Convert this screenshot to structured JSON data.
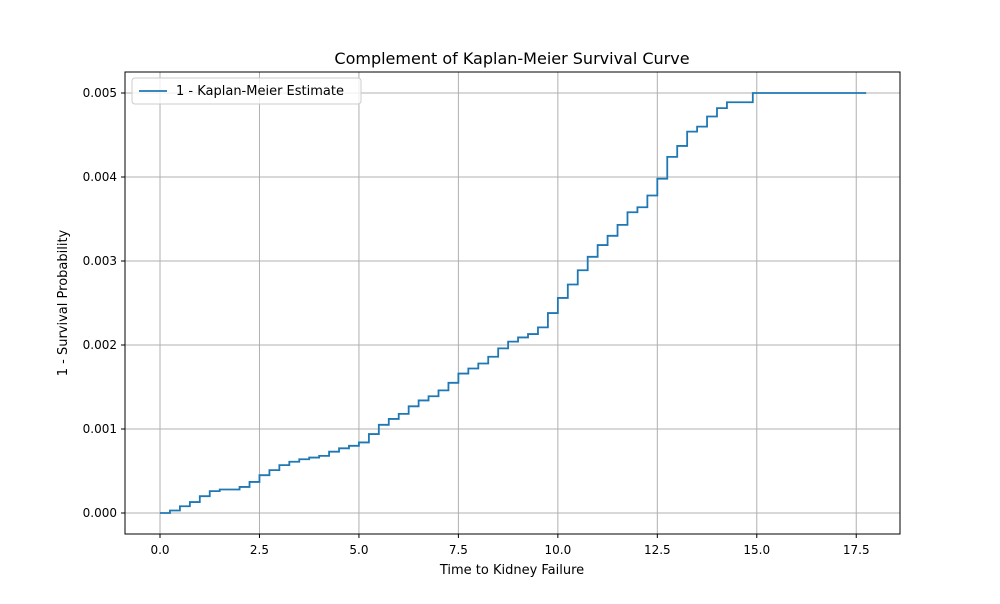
{
  "chart_data": {
    "type": "line",
    "title": "Complement of Kaplan-Meier Survival Curve",
    "xlabel": "Time to Kidney Failure",
    "ylabel": "1 - Survival Probability",
    "xlim": [
      -0.88,
      18.6
    ],
    "ylim": [
      -0.00025,
      0.00525
    ],
    "xticks": [
      0.0,
      2.5,
      5.0,
      7.5,
      10.0,
      12.5,
      15.0,
      17.5
    ],
    "xtick_labels": [
      "0.0",
      "2.5",
      "5.0",
      "7.5",
      "10.0",
      "12.5",
      "15.0",
      "17.5"
    ],
    "yticks": [
      0.0,
      0.001,
      0.002,
      0.003,
      0.004,
      0.005
    ],
    "ytick_labels": [
      "0.000",
      "0.001",
      "0.002",
      "0.003",
      "0.004",
      "0.005"
    ],
    "grid": true,
    "legend_position": "top-left",
    "color": "#1f77b4",
    "series": [
      {
        "name": "1 - Kaplan-Meier Estimate",
        "step": true,
        "x": [
          0.0,
          0.25,
          0.5,
          0.75,
          1.0,
          1.25,
          1.5,
          1.75,
          2.0,
          2.25,
          2.5,
          2.75,
          3.0,
          3.25,
          3.5,
          3.75,
          4.0,
          4.25,
          4.5,
          4.75,
          5.0,
          5.25,
          5.5,
          5.75,
          6.0,
          6.25,
          6.5,
          6.75,
          7.0,
          7.25,
          7.5,
          7.75,
          8.0,
          8.25,
          8.5,
          8.75,
          9.0,
          9.25,
          9.5,
          9.75,
          10.0,
          10.25,
          10.5,
          10.75,
          11.0,
          11.25,
          11.5,
          11.75,
          12.0,
          12.25,
          12.5,
          12.75,
          13.0,
          13.25,
          13.5,
          13.75,
          14.0,
          14.25,
          14.5,
          14.75,
          14.9,
          17.75
        ],
        "y": [
          0.0,
          3e-05,
          8e-05,
          0.00013,
          0.0002,
          0.00026,
          0.00028,
          0.00028,
          0.00031,
          0.00037,
          0.00045,
          0.00051,
          0.00057,
          0.00061,
          0.00064,
          0.00066,
          0.00068,
          0.00073,
          0.00077,
          0.0008,
          0.00084,
          0.00094,
          0.00105,
          0.00112,
          0.00118,
          0.00127,
          0.00134,
          0.00139,
          0.00146,
          0.00155,
          0.00166,
          0.00172,
          0.00178,
          0.00186,
          0.00196,
          0.00204,
          0.00209,
          0.00213,
          0.00221,
          0.00238,
          0.00256,
          0.00272,
          0.00289,
          0.00305,
          0.00319,
          0.0033,
          0.00343,
          0.00358,
          0.00364,
          0.00378,
          0.00398,
          0.00424,
          0.00437,
          0.00454,
          0.0046,
          0.00472,
          0.00482,
          0.00489,
          0.00489,
          0.00489,
          0.005,
          0.005
        ]
      }
    ]
  }
}
